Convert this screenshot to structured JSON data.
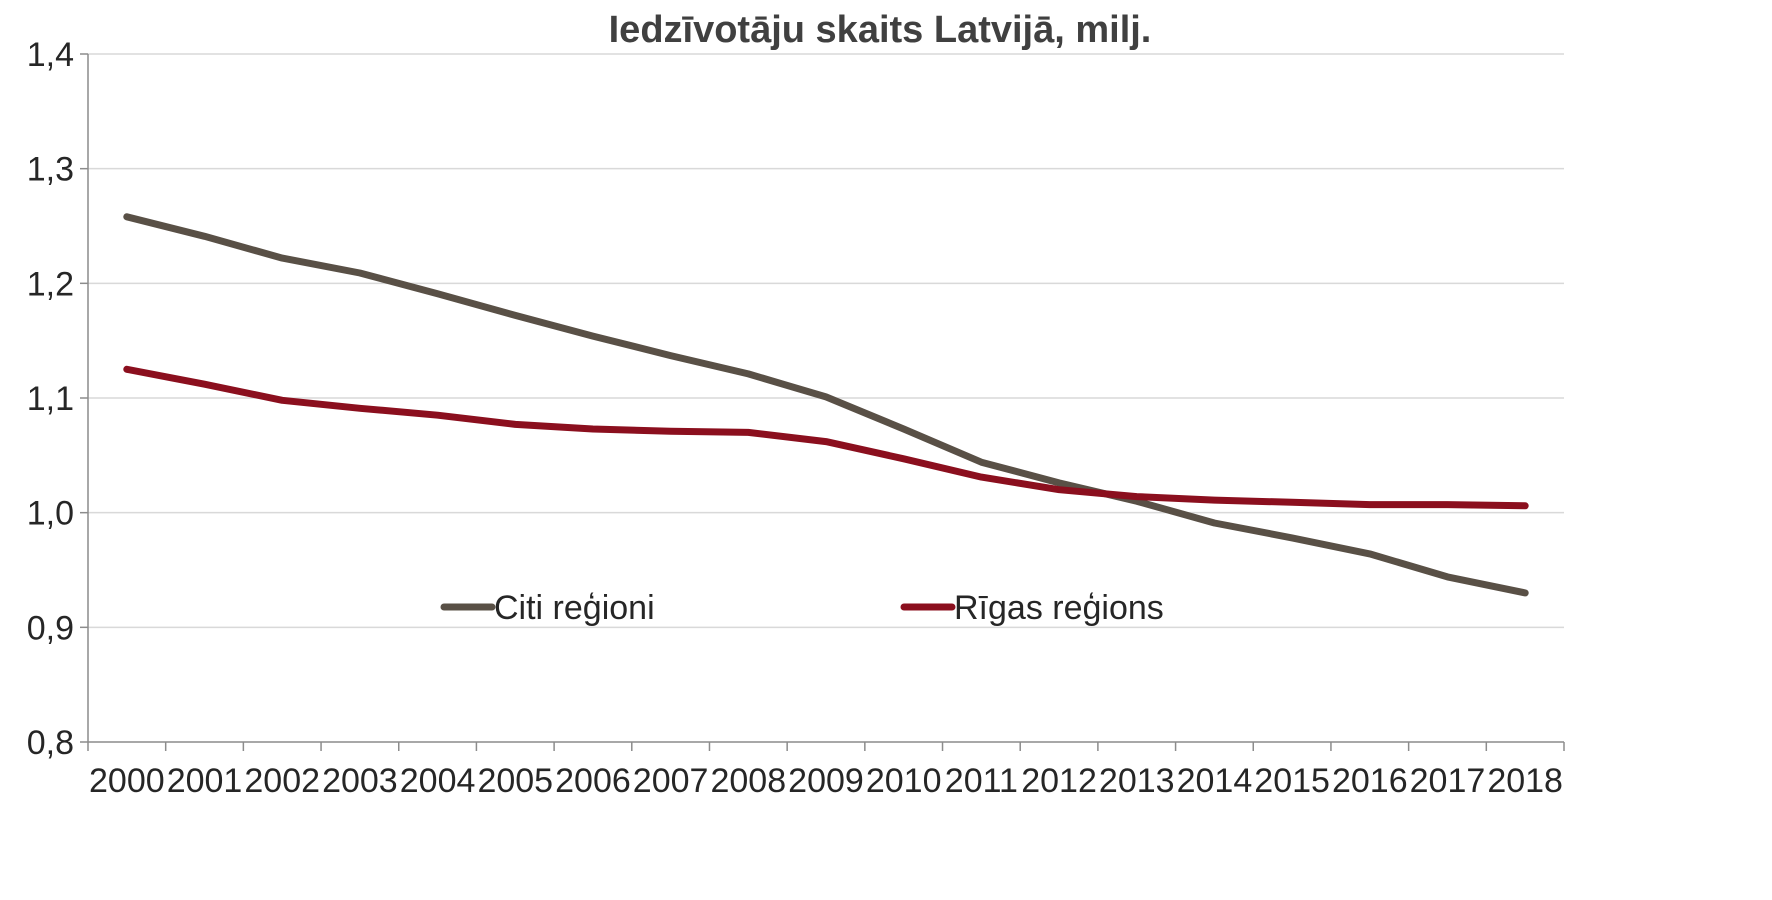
{
  "chart_data": {
    "type": "line",
    "title": "Iedzīvotāju skaits Latvijā, milj.",
    "xlabel": "",
    "ylabel": "",
    "categories": [
      "2000",
      "2001",
      "2002",
      "2003",
      "2004",
      "2005",
      "2006",
      "2007",
      "2008",
      "2009",
      "2010",
      "2011",
      "2012",
      "2013",
      "2014",
      "2015",
      "2016",
      "2017",
      "2018"
    ],
    "ylim": [
      0.8,
      1.4
    ],
    "y_ticks": [
      1.4,
      1.3,
      1.2,
      1.1,
      1.0,
      0.9,
      0.8
    ],
    "y_tick_labels": [
      "1,4",
      "1,3",
      "1,2",
      "1,1",
      "1,0",
      "0,9",
      "0,8"
    ],
    "grid": "horizontal",
    "legend_position": "bottom-center-inside",
    "series": [
      {
        "name": "Citi reģioni",
        "color": "#595046",
        "values": [
          1.258,
          1.241,
          1.222,
          1.209,
          1.191,
          1.172,
          1.154,
          1.137,
          1.121,
          1.101,
          1.073,
          1.044,
          1.026,
          1.01,
          0.991,
          0.978,
          0.964,
          0.944,
          0.93
        ]
      },
      {
        "name": "Rīgas reģions",
        "color": "#8B0F1E",
        "values": [
          1.125,
          1.112,
          1.098,
          1.091,
          1.085,
          1.077,
          1.073,
          1.071,
          1.07,
          1.062,
          1.047,
          1.031,
          1.02,
          1.014,
          1.011,
          1.009,
          1.007,
          1.007,
          1.006
        ]
      }
    ]
  }
}
